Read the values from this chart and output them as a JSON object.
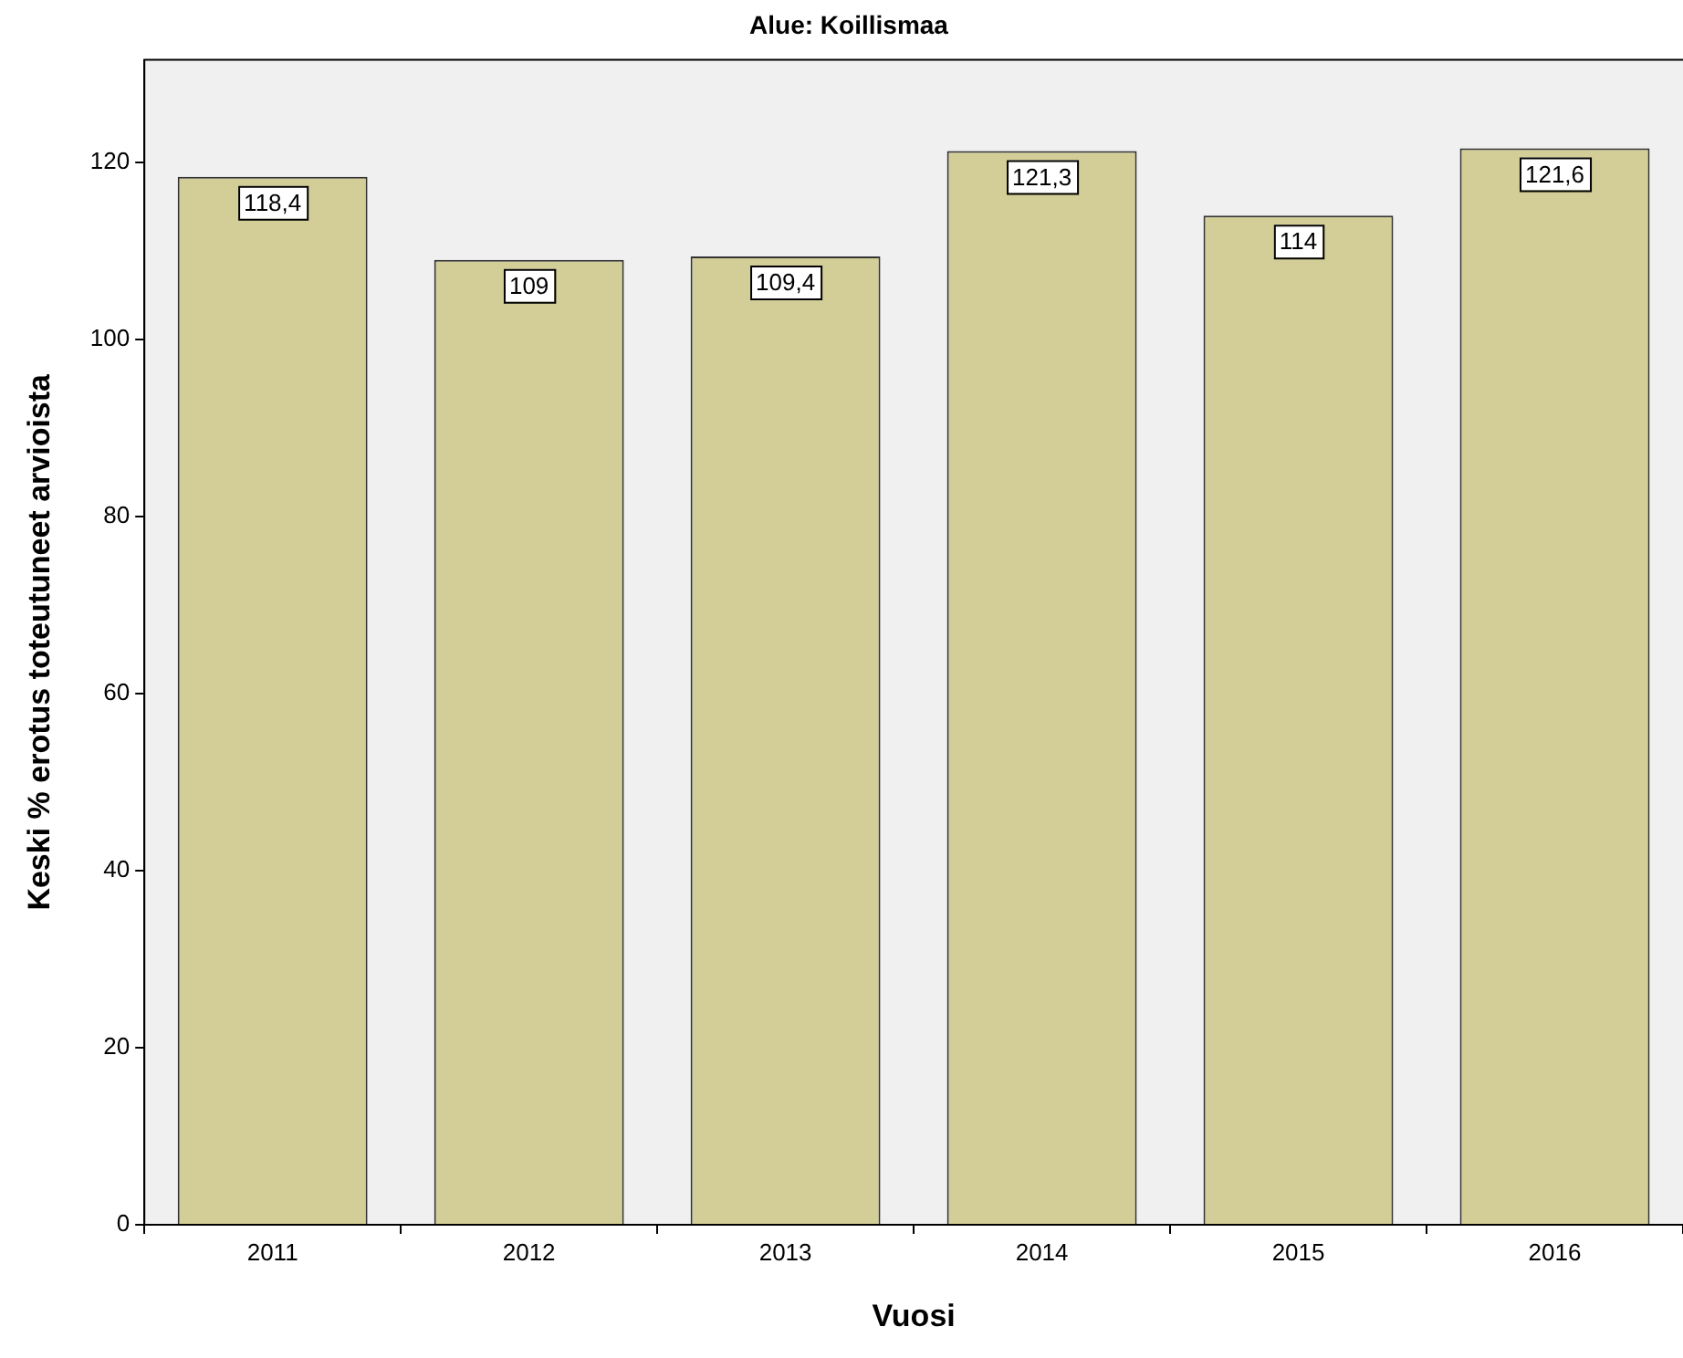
{
  "chart_data": {
    "type": "bar",
    "title": "Alue: Koillismaa",
    "xlabel": "Vuosi",
    "ylabel": "Keski % erotus toteutuneet arvioista",
    "categories": [
      "2011",
      "2012",
      "2013",
      "2014",
      "2015",
      "2016"
    ],
    "values": [
      118.4,
      109,
      109.4,
      121.3,
      114,
      121.6
    ],
    "value_labels": [
      "118,4",
      "109",
      "109,4",
      "121,3",
      "114",
      "121,6"
    ],
    "color": "#d3ce97",
    "ylim": [
      0,
      131.6
    ],
    "yticks": [
      0,
      20,
      40,
      60,
      80,
      100,
      120
    ],
    "grid": false
  }
}
